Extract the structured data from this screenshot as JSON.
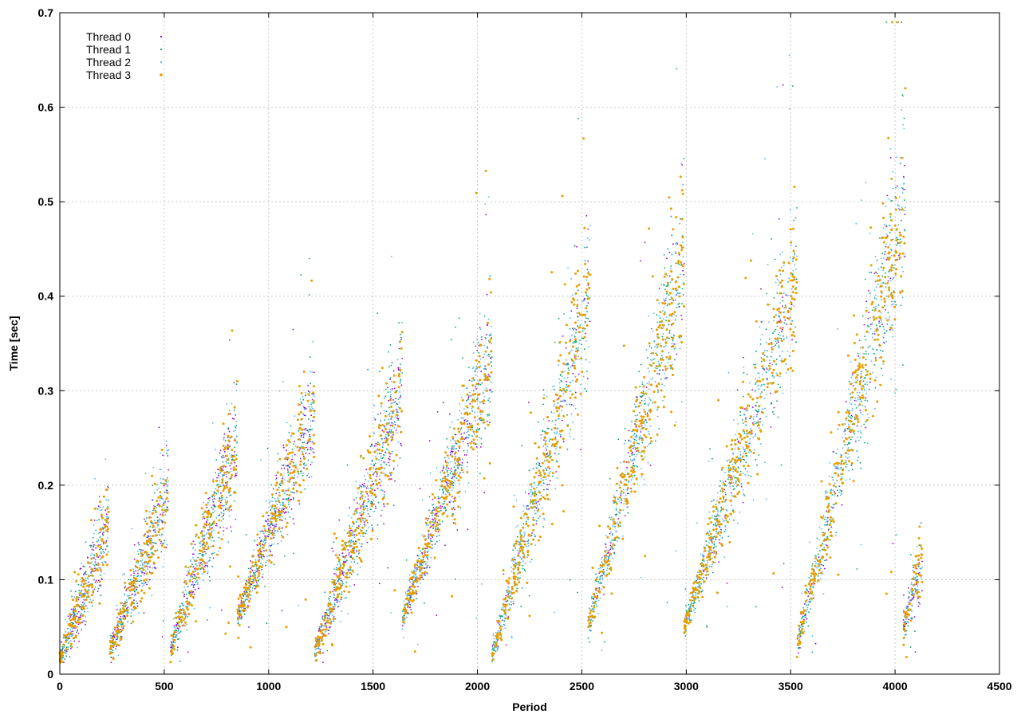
{
  "chart_data": {
    "type": "scatter",
    "title": "",
    "xlabel": "Period",
    "ylabel": "Time [sec]",
    "xlim": [
      0,
      4500
    ],
    "ylim": [
      0,
      0.7
    ],
    "xticks": [
      0,
      500,
      1000,
      1500,
      2000,
      2500,
      3000,
      3500,
      4000,
      4500
    ],
    "yticks": [
      0,
      0.1,
      0.2,
      0.3,
      0.4,
      0.5,
      0.6,
      0.7
    ],
    "grid": true,
    "legend_position": "top-left",
    "segments": [
      {
        "start": 0,
        "end": 235,
        "y_start": 0.017,
        "y_end": 0.16
      },
      {
        "start": 240,
        "end": 520,
        "y_start": 0.025,
        "y_end": 0.19
      },
      {
        "start": 530,
        "end": 850,
        "y_start": 0.025,
        "y_end": 0.25
      },
      {
        "start": 850,
        "end": 1220,
        "y_start": 0.06,
        "y_end": 0.28
      },
      {
        "start": 1220,
        "end": 1640,
        "y_start": 0.02,
        "y_end": 0.3
      },
      {
        "start": 1640,
        "end": 2070,
        "y_start": 0.06,
        "y_end": 0.34
      },
      {
        "start": 2070,
        "end": 2540,
        "y_start": 0.02,
        "y_end": 0.4
      },
      {
        "start": 2530,
        "end": 2990,
        "y_start": 0.05,
        "y_end": 0.44
      },
      {
        "start": 2990,
        "end": 3530,
        "y_start": 0.05,
        "y_end": 0.42
      },
      {
        "start": 3530,
        "end": 4050,
        "y_start": 0.03,
        "y_end": 0.5
      },
      {
        "start": 4040,
        "end": 4130,
        "y_start": 0.05,
        "y_end": 0.12
      }
    ],
    "series": [
      {
        "name": "Thread 0",
        "color": "#9400d3",
        "marker": "dot"
      },
      {
        "name": "Thread 1",
        "color": "#009e73",
        "marker": "dot"
      },
      {
        "name": "Thread 2",
        "color": "#56b4e9",
        "marker": "dot"
      },
      {
        "name": "Thread 3",
        "color": "#e69f00",
        "marker": "dot"
      }
    ]
  }
}
